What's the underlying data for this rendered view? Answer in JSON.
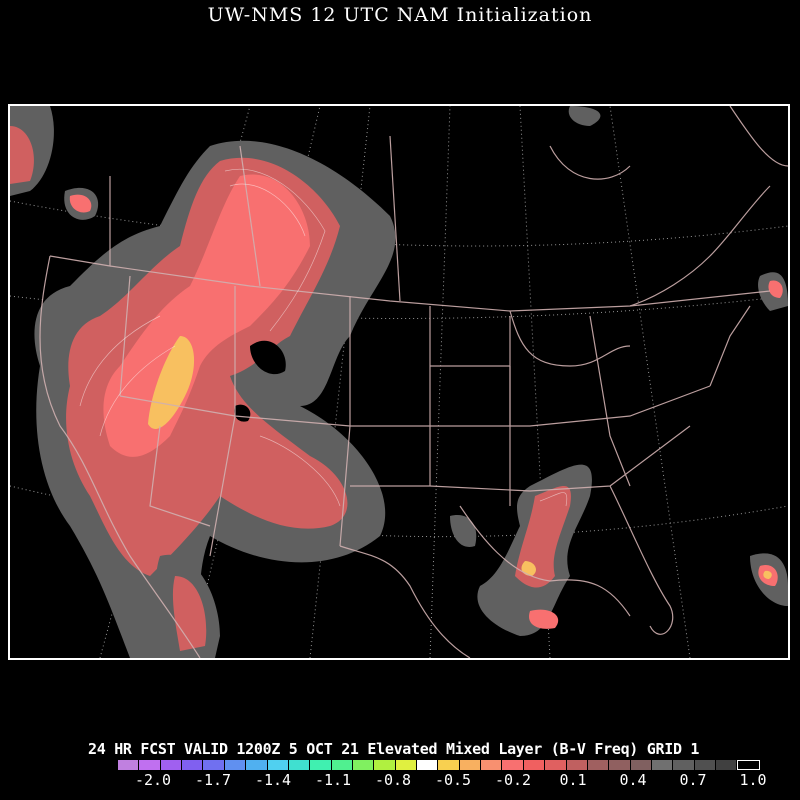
{
  "title": "UW-NMS 12 UTC NAM Initialization",
  "caption": "24 HR FCST VALID 1200Z  5 OCT 21 Elevated Mixed Layer (B-V Freq) GRID 1",
  "colorbar": {
    "colors": [
      "#c080e0",
      "#c070f0",
      "#a060f0",
      "#8060f0",
      "#7070f0",
      "#6090f0",
      "#50b0f0",
      "#50d0f0",
      "#40e0d0",
      "#40f0b0",
      "#50f090",
      "#80f060",
      "#b0f040",
      "#e0f040",
      "#ffffff",
      "#f8d050",
      "#f8b060",
      "#f89070",
      "#f87070",
      "#f06060",
      "#e06060",
      "#c06060",
      "#a06060",
      "#906060",
      "#806060",
      "#707070",
      "#606060",
      "#505050",
      "#404040",
      "#000000"
    ],
    "tick_labels": [
      "-2.0",
      "-1.7",
      "-1.4",
      "-1.1",
      "-0.8",
      "-0.5",
      "-0.2",
      "0.1",
      "0.4",
      "0.7",
      "1.0"
    ]
  },
  "map": {
    "lines": {
      "boundaries": "#d0b0b0",
      "graticule": "#bbbbbb"
    },
    "fill_colors": {
      "low": "#606060",
      "mid": "#d06060",
      "high": "#f87070",
      "peak": "#f8c060"
    }
  }
}
